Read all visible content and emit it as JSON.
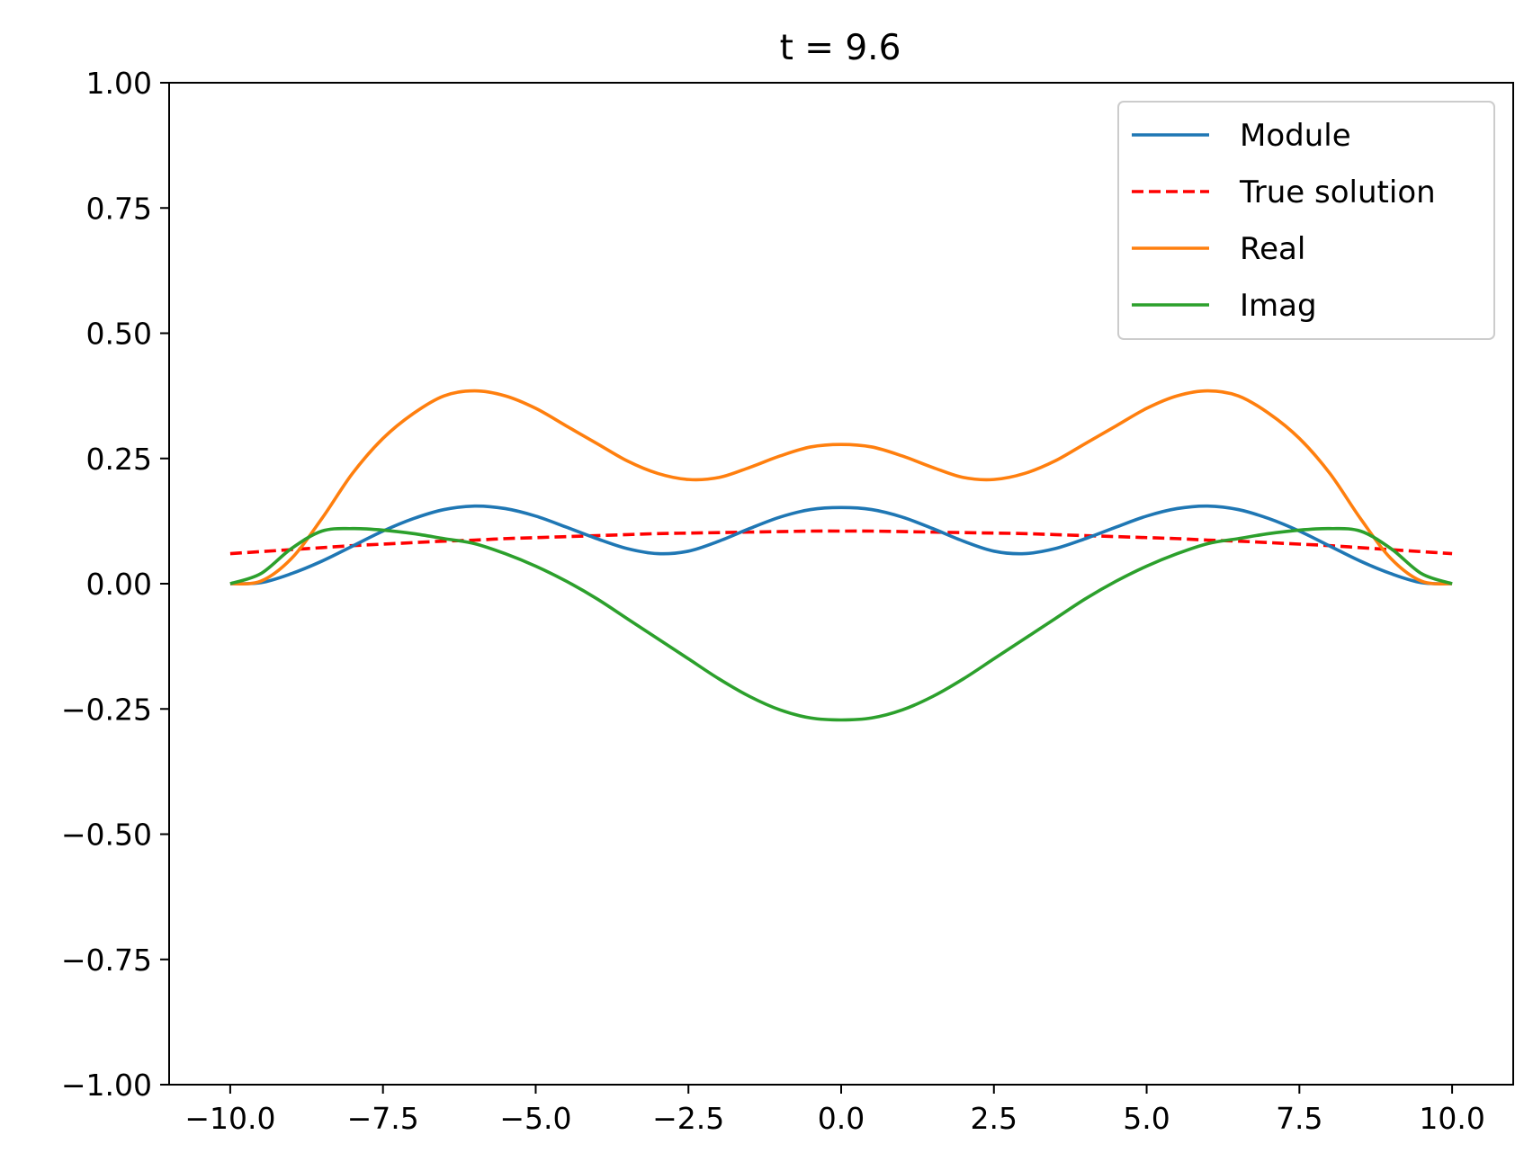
{
  "chart_data": {
    "type": "line",
    "title": "t = 9.6",
    "xlabel": "",
    "ylabel": "",
    "xlim": [
      -11,
      11
    ],
    "ylim": [
      -1,
      1
    ],
    "x_ticks": [
      -10,
      -7.5,
      -5,
      -2.5,
      0,
      2.5,
      5,
      7.5,
      10
    ],
    "x_tick_labels": [
      "−10.0",
      "−7.5",
      "−5.0",
      "−2.5",
      "0.0",
      "2.5",
      "5.0",
      "7.5",
      "10.0"
    ],
    "y_ticks": [
      -1,
      -0.75,
      -0.5,
      -0.25,
      0,
      0.25,
      0.5,
      0.75,
      1
    ],
    "y_tick_labels": [
      "−1.00",
      "−0.75",
      "−0.50",
      "−0.25",
      "0.00",
      "0.25",
      "0.50",
      "0.75",
      "1.00"
    ],
    "grid": false,
    "legend_position": "top-right",
    "x": [
      -10,
      -9.5,
      -9,
      -8.5,
      -8,
      -7.5,
      -7,
      -6.5,
      -6,
      -5.5,
      -5,
      -4.5,
      -4,
      -3.5,
      -3,
      -2.5,
      -2,
      -1.5,
      -1,
      -0.5,
      0,
      0.5,
      1,
      1.5,
      2,
      2.5,
      3,
      3.5,
      4,
      4.5,
      5,
      5.5,
      6,
      6.5,
      7,
      7.5,
      8,
      8.5,
      9,
      9.5,
      10
    ],
    "series": [
      {
        "name": "Module",
        "color": "#1f77b4",
        "dash": "solid",
        "values": [
          0.0,
          0.002,
          0.02,
          0.045,
          0.075,
          0.105,
          0.13,
          0.148,
          0.155,
          0.15,
          0.135,
          0.113,
          0.09,
          0.07,
          0.06,
          0.065,
          0.085,
          0.11,
          0.133,
          0.148,
          0.152,
          0.148,
          0.133,
          0.11,
          0.085,
          0.065,
          0.06,
          0.07,
          0.09,
          0.113,
          0.135,
          0.15,
          0.155,
          0.148,
          0.13,
          0.105,
          0.075,
          0.045,
          0.02,
          0.002,
          0.0
        ]
      },
      {
        "name": "True solution",
        "color": "#ff0000",
        "dash": "dashed",
        "values": [
          0.06,
          0.064,
          0.068,
          0.072,
          0.076,
          0.079,
          0.082,
          0.085,
          0.087,
          0.09,
          0.092,
          0.094,
          0.096,
          0.098,
          0.1,
          0.101,
          0.102,
          0.103,
          0.104,
          0.105,
          0.105,
          0.105,
          0.104,
          0.103,
          0.102,
          0.101,
          0.1,
          0.098,
          0.096,
          0.094,
          0.092,
          0.09,
          0.087,
          0.085,
          0.082,
          0.079,
          0.076,
          0.072,
          0.068,
          0.064,
          0.06
        ]
      },
      {
        "name": "Real",
        "color": "#ff7f0e",
        "dash": "solid",
        "values": [
          0.0,
          0.005,
          0.05,
          0.13,
          0.22,
          0.29,
          0.34,
          0.375,
          0.385,
          0.375,
          0.35,
          0.315,
          0.28,
          0.245,
          0.22,
          0.208,
          0.212,
          0.232,
          0.255,
          0.273,
          0.278,
          0.273,
          0.255,
          0.232,
          0.212,
          0.208,
          0.22,
          0.245,
          0.28,
          0.315,
          0.35,
          0.375,
          0.385,
          0.375,
          0.34,
          0.29,
          0.22,
          0.13,
          0.05,
          0.005,
          0.0
        ]
      },
      {
        "name": "Imag",
        "color": "#2ca02c",
        "dash": "solid",
        "values": [
          0.0,
          0.02,
          0.07,
          0.105,
          0.11,
          0.107,
          0.1,
          0.09,
          0.08,
          0.06,
          0.035,
          0.005,
          -0.03,
          -0.07,
          -0.11,
          -0.15,
          -0.19,
          -0.225,
          -0.252,
          -0.268,
          -0.272,
          -0.268,
          -0.252,
          -0.225,
          -0.19,
          -0.15,
          -0.11,
          -0.07,
          -0.03,
          0.005,
          0.035,
          0.06,
          0.08,
          0.09,
          0.1,
          0.107,
          0.11,
          0.105,
          0.07,
          0.02,
          0.0
        ]
      }
    ]
  }
}
